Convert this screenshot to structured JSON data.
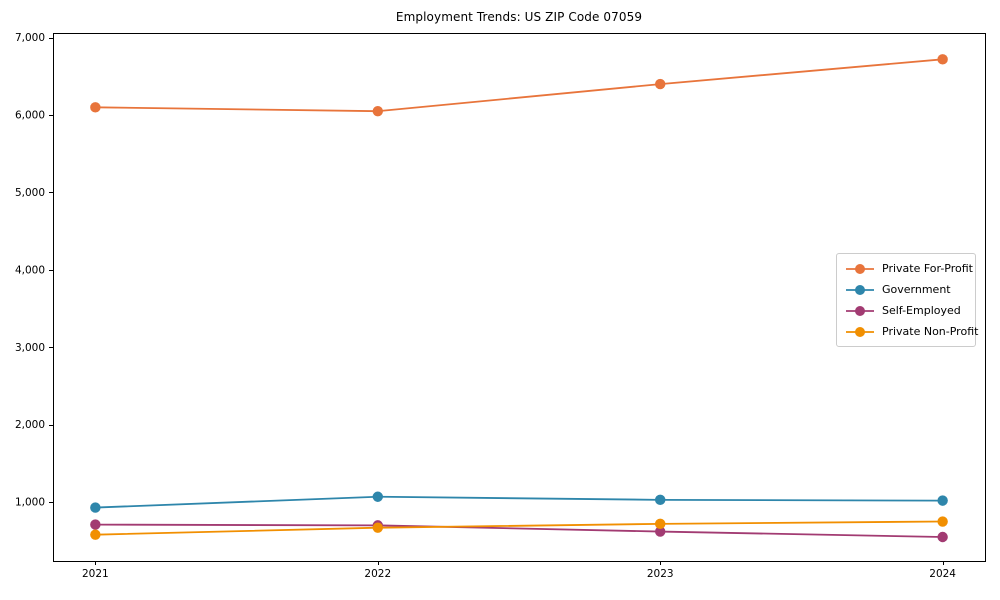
{
  "chart_data": {
    "type": "line",
    "title": "Employment Trends: US ZIP Code 07059",
    "xlabel": "",
    "ylabel": "",
    "x": [
      2021,
      2022,
      2023,
      2024
    ],
    "x_tick_labels": [
      "2021",
      "2022",
      "2023",
      "2024"
    ],
    "series": [
      {
        "name": "Private For-Profit",
        "color": "#e8743b",
        "values": [
          6100,
          6050,
          6400,
          6720
        ]
      },
      {
        "name": "Government",
        "color": "#2e86ab",
        "values": [
          930,
          1070,
          1030,
          1020
        ]
      },
      {
        "name": "Self-Employed",
        "color": "#a23b72",
        "values": [
          710,
          700,
          620,
          550
        ]
      },
      {
        "name": "Private Non-Profit",
        "color": "#f18f01",
        "values": [
          580,
          670,
          720,
          750
        ]
      }
    ],
    "yticks": [
      1000,
      2000,
      3000,
      4000,
      5000,
      6000,
      7000
    ],
    "ytick_labels": [
      "1,000",
      "2,000",
      "3,000",
      "4,000",
      "5,000",
      "6,000",
      "7,000"
    ],
    "xlim": [
      2020.85,
      2024.15
    ],
    "ylim": [
      240,
      7060
    ],
    "grid": false,
    "legend_position": "center-right",
    "marker": "circle",
    "background_color": "#ffffff",
    "axis_color": "#000000"
  }
}
